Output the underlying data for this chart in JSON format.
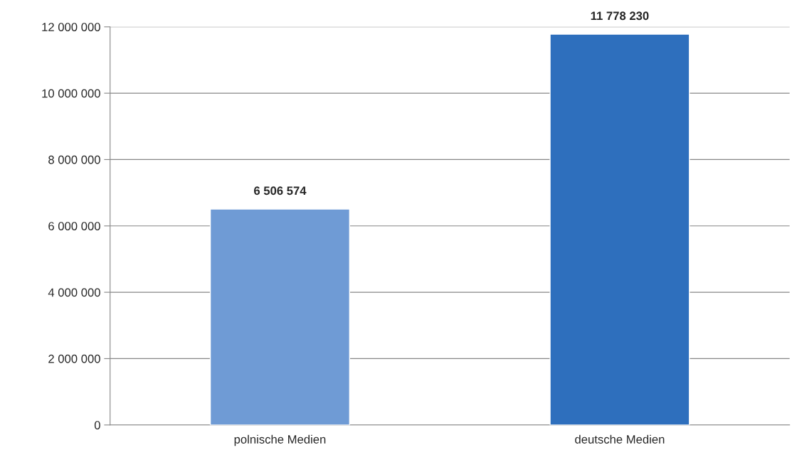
{
  "chart_data": {
    "type": "bar",
    "categories": [
      "polnische Medien",
      "deutsche Medien"
    ],
    "values": [
      6506574,
      11778230
    ],
    "colors": [
      "#6f9bd5",
      "#2e6fbd"
    ],
    "value_labels": [
      "6 506 574",
      "11 778 230"
    ],
    "ylim": [
      0,
      12000000
    ],
    "yticks": [
      {
        "value": 0,
        "label": "0"
      },
      {
        "value": 2000000,
        "label": "2 000 000"
      },
      {
        "value": 4000000,
        "label": "4 000 000"
      },
      {
        "value": 6000000,
        "label": "6 000 000"
      },
      {
        "value": 8000000,
        "label": "8 000 000"
      },
      {
        "value": 10000000,
        "label": "10 000 000"
      },
      {
        "value": 12000000,
        "label": "12 000 000"
      }
    ],
    "grid": "y",
    "legend": false
  }
}
